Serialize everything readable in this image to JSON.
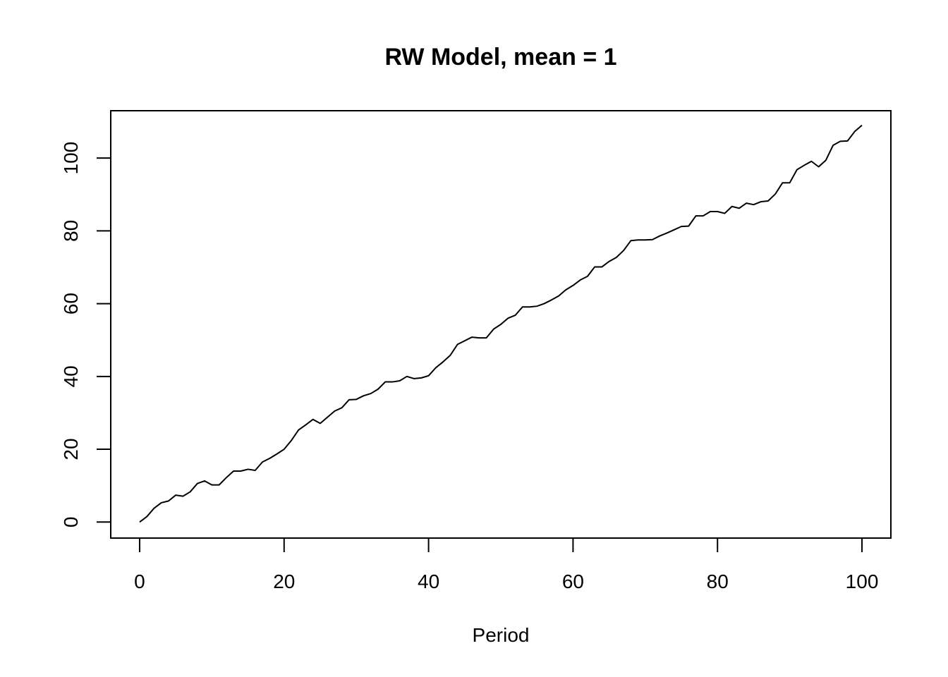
{
  "chart_data": {
    "type": "line",
    "title": "RW Model, mean = 1",
    "xlabel": "Period",
    "ylabel": "",
    "xlim": [
      -4,
      104
    ],
    "ylim": [
      -4.4,
      113
    ],
    "x_ticks": [
      "0",
      "20",
      "40",
      "60",
      "80",
      "100"
    ],
    "y_ticks": [
      "0",
      "20",
      "40",
      "60",
      "80",
      "100"
    ],
    "grid": false,
    "legend": "none",
    "line_color": "#000000",
    "series": [
      {
        "x": [
          0,
          1,
          2,
          3,
          4,
          5,
          6,
          7,
          8,
          9,
          10,
          11,
          12,
          13,
          14,
          15,
          16,
          17,
          18,
          19,
          20,
          21,
          22,
          23,
          24,
          25,
          26,
          27,
          28,
          29,
          30,
          31,
          32,
          33,
          34,
          35,
          36,
          37,
          38,
          39,
          40,
          41,
          42,
          43,
          44,
          45,
          46,
          47,
          48,
          49,
          50,
          51,
          52,
          53,
          54,
          55,
          56,
          57,
          58,
          59,
          60,
          61,
          62,
          63,
          64,
          65,
          66,
          67,
          68,
          69,
          70,
          71,
          72,
          73,
          74,
          75,
          76,
          77,
          78,
          79,
          80,
          81,
          82,
          83,
          84,
          85,
          86,
          87,
          88,
          89,
          90,
          91,
          92,
          93,
          94,
          95,
          96,
          97,
          98,
          99,
          100
        ],
        "values": [
          0,
          1.5,
          3.8,
          5.3,
          5.8,
          7.4,
          7.1,
          8.3,
          10.6,
          11.3,
          10.2,
          10.2,
          12.2,
          14.0,
          14.0,
          14.5,
          14.2,
          16.5,
          17.5,
          18.7,
          20.0,
          22.4,
          25.3,
          26.7,
          28.2,
          27.1,
          28.8,
          30.5,
          31.4,
          33.6,
          33.7,
          34.7,
          35.3,
          36.5,
          38.5,
          38.5,
          38.8,
          40.0,
          39.4,
          39.6,
          40.2,
          42.4,
          44.0,
          45.8,
          48.8,
          49.8,
          50.8,
          50.6,
          50.6,
          53.0,
          54.3,
          56.0,
          56.8,
          59.1,
          59.1,
          59.3,
          60.0,
          61.0,
          62.1,
          63.8,
          65.0,
          66.5,
          67.5,
          70.1,
          70.1,
          71.6,
          72.7,
          74.6,
          77.3,
          77.5,
          77.5,
          77.6,
          78.6,
          79.4,
          80.3,
          81.2,
          81.3,
          84.1,
          84.1,
          85.3,
          85.3,
          84.8,
          86.7,
          86.2,
          87.6,
          87.2,
          88.0,
          88.2,
          90.1,
          93.2,
          93.2,
          96.8,
          98.0,
          99.1,
          97.6,
          99.4,
          103.5,
          104.6,
          104.7,
          107.3,
          109.0
        ]
      }
    ]
  }
}
